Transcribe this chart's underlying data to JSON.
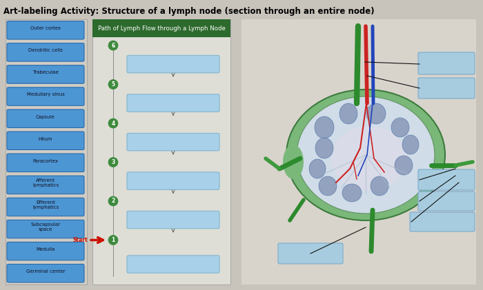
{
  "title": "Art-labeling Activity: Structure of a lymph node (section through an entire node)",
  "title_fontsize": 8.5,
  "bg_color": "#c8c4bc",
  "left_labels": [
    "Outer cortex",
    "Dendritic cells",
    "Trabeculae",
    "Medullary sinus",
    "Capsule",
    "Hilum",
    "Paracortex",
    "Afferent\nlymphatics",
    "Efferent\nlymphatics",
    "Subcapsular\nspace",
    "Medulla",
    "Germinal center"
  ],
  "label_btn_color": "#4d96d4",
  "label_btn_edge": "#2a6aaa",
  "label_text_color": "#111122",
  "flow_title": "Path of Lymph Flow through a Lymph Node",
  "flow_title_bg": "#2d6a2d",
  "flow_title_color": "white",
  "flow_box_color": "#a8d0e8",
  "flow_box_edge": "#7ab0cc",
  "flow_panel_bg": "#deded6",
  "flow_panel_edge": "#aaaaaa",
  "answer_box_color": "#a8ccdf",
  "answer_box_edge": "#7aaacc",
  "start_arrow_color": "#cc1100",
  "node_circle_color": "#3d8a3d",
  "step_dot_color": "#3d8a3d"
}
